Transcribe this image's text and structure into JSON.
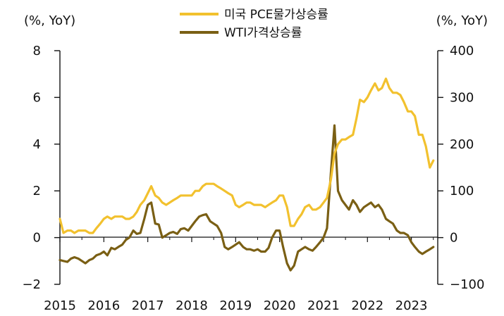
{
  "chart_data": {
    "type": "line",
    "title": "",
    "left_unit": "(%, YoY)",
    "right_unit": "(%, YoY)",
    "legend_position": "top-center",
    "x_range": [
      2015.0,
      2023.6
    ],
    "x_ticks": [
      "2015",
      "2016",
      "2017",
      "2018",
      "2019",
      "2020",
      "2021",
      "2022",
      "2023"
    ],
    "left_axis": {
      "min": -2,
      "max": 8,
      "ticks": [
        "−2",
        "0",
        "2",
        "4",
        "6",
        "8"
      ],
      "values": [
        -2,
        0,
        2,
        4,
        6,
        8
      ]
    },
    "right_axis": {
      "min": -100,
      "max": 400,
      "ticks": [
        "−100",
        "0",
        "100",
        "200",
        "300",
        "400"
      ],
      "values": [
        -100,
        0,
        100,
        200,
        300,
        400
      ]
    },
    "colors": {
      "pce": "#F2C12E",
      "wti": "#7A5F14",
      "axis": "#111111"
    },
    "series": [
      {
        "name": "미국 PCE물가상승률",
        "axis": "left",
        "x": [
          2015.0,
          2015.08,
          2015.17,
          2015.25,
          2015.33,
          2015.42,
          2015.5,
          2015.58,
          2015.67,
          2015.75,
          2015.83,
          2015.92,
          2016.0,
          2016.08,
          2016.17,
          2016.25,
          2016.33,
          2016.42,
          2016.5,
          2016.58,
          2016.67,
          2016.75,
          2016.83,
          2016.92,
          2017.0,
          2017.08,
          2017.17,
          2017.25,
          2017.33,
          2017.42,
          2017.5,
          2017.58,
          2017.67,
          2017.75,
          2017.83,
          2017.92,
          2018.0,
          2018.08,
          2018.17,
          2018.25,
          2018.33,
          2018.42,
          2018.5,
          2018.58,
          2018.67,
          2018.75,
          2018.83,
          2018.92,
          2019.0,
          2019.08,
          2019.17,
          2019.25,
          2019.33,
          2019.42,
          2019.5,
          2019.58,
          2019.67,
          2019.75,
          2019.83,
          2019.92,
          2020.0,
          2020.08,
          2020.17,
          2020.25,
          2020.33,
          2020.42,
          2020.5,
          2020.58,
          2020.67,
          2020.75,
          2020.83,
          2020.92,
          2021.0,
          2021.08,
          2021.17,
          2021.25,
          2021.33,
          2021.42,
          2021.5,
          2021.58,
          2021.67,
          2021.75,
          2021.83,
          2021.92,
          2022.0,
          2022.08,
          2022.17,
          2022.25,
          2022.33,
          2022.42,
          2022.5,
          2022.58,
          2022.67,
          2022.75,
          2022.83,
          2022.92,
          2023.0,
          2023.08,
          2023.17,
          2023.25,
          2023.33,
          2023.42,
          2023.5
        ],
        "values": [
          0.8,
          0.2,
          0.3,
          0.3,
          0.2,
          0.3,
          0.3,
          0.3,
          0.2,
          0.2,
          0.4,
          0.6,
          0.8,
          0.9,
          0.8,
          0.9,
          0.9,
          0.9,
          0.8,
          0.8,
          0.9,
          1.1,
          1.4,
          1.6,
          1.9,
          2.2,
          1.8,
          1.7,
          1.5,
          1.4,
          1.5,
          1.6,
          1.7,
          1.8,
          1.8,
          1.8,
          1.8,
          2.0,
          2.0,
          2.2,
          2.3,
          2.3,
          2.3,
          2.2,
          2.1,
          2.0,
          1.9,
          1.8,
          1.4,
          1.3,
          1.4,
          1.5,
          1.5,
          1.4,
          1.4,
          1.4,
          1.3,
          1.4,
          1.5,
          1.6,
          1.8,
          1.8,
          1.3,
          0.5,
          0.5,
          0.8,
          1.0,
          1.3,
          1.4,
          1.2,
          1.2,
          1.3,
          1.5,
          1.7,
          2.5,
          3.6,
          4.0,
          4.2,
          4.2,
          4.3,
          4.4,
          5.1,
          5.9,
          5.8,
          6.0,
          6.3,
          6.6,
          6.3,
          6.4,
          6.8,
          6.4,
          6.2,
          6.2,
          6.1,
          5.8,
          5.4,
          5.4,
          5.2,
          4.4,
          4.4,
          3.9,
          3.0,
          3.3
        ]
      },
      {
        "name": "WTI가격상승률",
        "axis": "right",
        "x": [
          2015.0,
          2015.08,
          2015.17,
          2015.25,
          2015.33,
          2015.42,
          2015.5,
          2015.58,
          2015.67,
          2015.75,
          2015.83,
          2015.92,
          2016.0,
          2016.08,
          2016.17,
          2016.25,
          2016.33,
          2016.42,
          2016.5,
          2016.58,
          2016.67,
          2016.75,
          2016.83,
          2016.92,
          2017.0,
          2017.08,
          2017.17,
          2017.25,
          2017.33,
          2017.42,
          2017.5,
          2017.58,
          2017.67,
          2017.75,
          2017.83,
          2017.92,
          2018.0,
          2018.08,
          2018.17,
          2018.25,
          2018.33,
          2018.42,
          2018.5,
          2018.58,
          2018.67,
          2018.75,
          2018.83,
          2018.92,
          2019.0,
          2019.08,
          2019.17,
          2019.25,
          2019.33,
          2019.42,
          2019.5,
          2019.58,
          2019.67,
          2019.75,
          2019.83,
          2019.92,
          2020.0,
          2020.08,
          2020.17,
          2020.25,
          2020.33,
          2020.42,
          2020.5,
          2020.58,
          2020.67,
          2020.75,
          2020.83,
          2020.92,
          2021.0,
          2021.08,
          2021.17,
          2021.25,
          2021.33,
          2021.42,
          2021.5,
          2021.58,
          2021.67,
          2021.75,
          2021.83,
          2021.92,
          2022.0,
          2022.08,
          2022.17,
          2022.25,
          2022.33,
          2022.42,
          2022.5,
          2022.58,
          2022.67,
          2022.75,
          2022.83,
          2022.92,
          2023.0,
          2023.08,
          2023.17,
          2023.25,
          2023.33,
          2023.42,
          2023.5
        ],
        "values": [
          -48,
          -50,
          -52,
          -45,
          -42,
          -45,
          -50,
          -55,
          -48,
          -45,
          -38,
          -35,
          -30,
          -38,
          -22,
          -25,
          -20,
          -15,
          -5,
          0,
          15,
          8,
          10,
          40,
          70,
          75,
          30,
          28,
          0,
          5,
          10,
          12,
          8,
          18,
          20,
          15,
          25,
          35,
          45,
          48,
          50,
          35,
          30,
          25,
          10,
          -20,
          -25,
          -20,
          -15,
          -10,
          -20,
          -25,
          -25,
          -28,
          -25,
          -30,
          -30,
          -22,
          0,
          15,
          15,
          -20,
          -55,
          -70,
          -60,
          -30,
          -25,
          -20,
          -25,
          -28,
          -20,
          -10,
          0,
          20,
          140,
          240,
          100,
          80,
          70,
          60,
          80,
          70,
          55,
          65,
          70,
          75,
          65,
          70,
          60,
          40,
          35,
          30,
          15,
          10,
          10,
          5,
          -10,
          -20,
          -30,
          -35,
          -30,
          -25,
          -20
        ]
      }
    ]
  }
}
